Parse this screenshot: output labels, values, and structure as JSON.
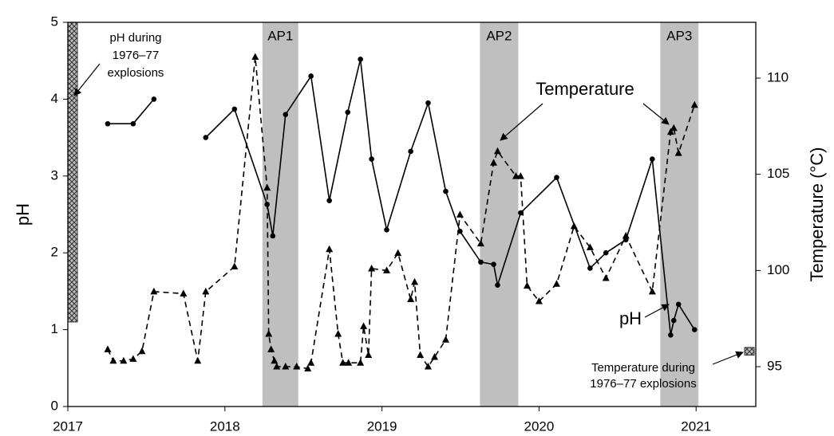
{
  "chart_data": {
    "type": "line",
    "y_label": "pH",
    "y2_label": "Temperature (°C)",
    "xlim": [
      2017,
      2021.38
    ],
    "xticks": [
      2017,
      2018,
      2019,
      2020,
      2021
    ],
    "ylim": [
      0,
      5
    ],
    "yticks": [
      0,
      1,
      2,
      3,
      4,
      5
    ],
    "y2lim": [
      92.93,
      112.9
    ],
    "y2ticks": [
      95,
      100,
      105,
      110
    ],
    "periods": [
      {
        "label": "AP1",
        "range": [
          2018.239,
          2018.467
        ]
      },
      {
        "label": "AP2",
        "range": [
          2019.624,
          2019.868
        ]
      },
      {
        "label": "AP3",
        "range": [
          2020.772,
          2021.015
        ]
      }
    ],
    "period_color": "#bfbfbf",
    "historical": [
      {
        "label": [
          "pH during",
          "1976–77",
          "explosions"
        ],
        "range": [
          1.1,
          5
        ]
      },
      {
        "label": [
          "Temperature during",
          "1976–77 explosions"
        ],
        "range": [
          95.6,
          96.0
        ],
        "axis": "y2"
      }
    ],
    "series": [
      {
        "name": "pH",
        "color": "#000000",
        "dash": false,
        "marker": "circle",
        "x": [
          2017.254,
          2017.416,
          2017.548,
          null,
          2017.878,
          2018.061,
          2018.269,
          2018.305,
          2018.386,
          2018.548,
          2018.665,
          2018.782,
          2018.863,
          2018.934,
          2019.03,
          2019.183,
          2019.294,
          2019.406,
          2019.497,
          2019.629,
          2019.711,
          2019.736,
          2019.883,
          2020.112,
          2020.325,
          2020.426,
          2020.553,
          2020.721,
          2020.838,
          2020.858,
          2020.888,
          2020.99
        ],
        "values": [
          3.68,
          3.68,
          4.0,
          null,
          3.5,
          3.87,
          2.63,
          2.22,
          3.8,
          4.3,
          2.68,
          3.83,
          4.52,
          3.22,
          2.3,
          3.32,
          3.95,
          2.8,
          2.28,
          1.88,
          1.85,
          1.58,
          2.52,
          2.98,
          1.8,
          2.0,
          2.17,
          3.22,
          0.93,
          1.12,
          1.33,
          1.0
        ]
      },
      {
        "name": "Temperature",
        "color": "#000000",
        "dash": true,
        "marker": "triangle",
        "axis": "y2",
        "x": [
          2017.254,
          2017.289,
          2017.355,
          2017.416,
          2017.472,
          2017.548,
          2017.736,
          2017.827,
          2017.878,
          2018.061,
          2018.193,
          2018.269,
          2018.279,
          2018.294,
          2018.315,
          2018.33,
          2018.386,
          2018.457,
          2018.528,
          2018.548,
          2018.665,
          2018.721,
          2018.751,
          2018.787,
          2018.863,
          2018.883,
          2018.914,
          2018.934,
          2019.03,
          2019.102,
          2019.183,
          2019.208,
          2019.244,
          2019.294,
          2019.335,
          2019.406,
          2019.497,
          2019.629,
          2019.711,
          2019.736,
          2019.853,
          2019.883,
          2019.924,
          2020.0,
          2020.112,
          2020.223,
          2020.325,
          2020.426,
          2020.553,
          2020.721,
          2020.838,
          2020.858,
          2020.888,
          2020.99
        ],
        "values": [
          95.9,
          95.3,
          95.3,
          95.4,
          95.8,
          98.9,
          98.8,
          95.3,
          98.9,
          100.2,
          111.1,
          104.3,
          96.7,
          95.9,
          95.3,
          95.0,
          95.0,
          95.0,
          94.9,
          95.2,
          101.1,
          96.7,
          95.2,
          95.2,
          95.2,
          97.1,
          95.6,
          100.1,
          100.0,
          100.9,
          98.5,
          99.4,
          95.6,
          95.0,
          95.5,
          96.4,
          102.9,
          101.4,
          105.6,
          106.2,
          104.9,
          104.9,
          99.2,
          98.4,
          99.3,
          102.3,
          101.2,
          99.6,
          101.8,
          98.9,
          107.2,
          107.4,
          106.1,
          108.6
        ]
      }
    ],
    "annotations": [
      {
        "text": "Temperature"
      },
      {
        "text": "pH"
      }
    ]
  }
}
